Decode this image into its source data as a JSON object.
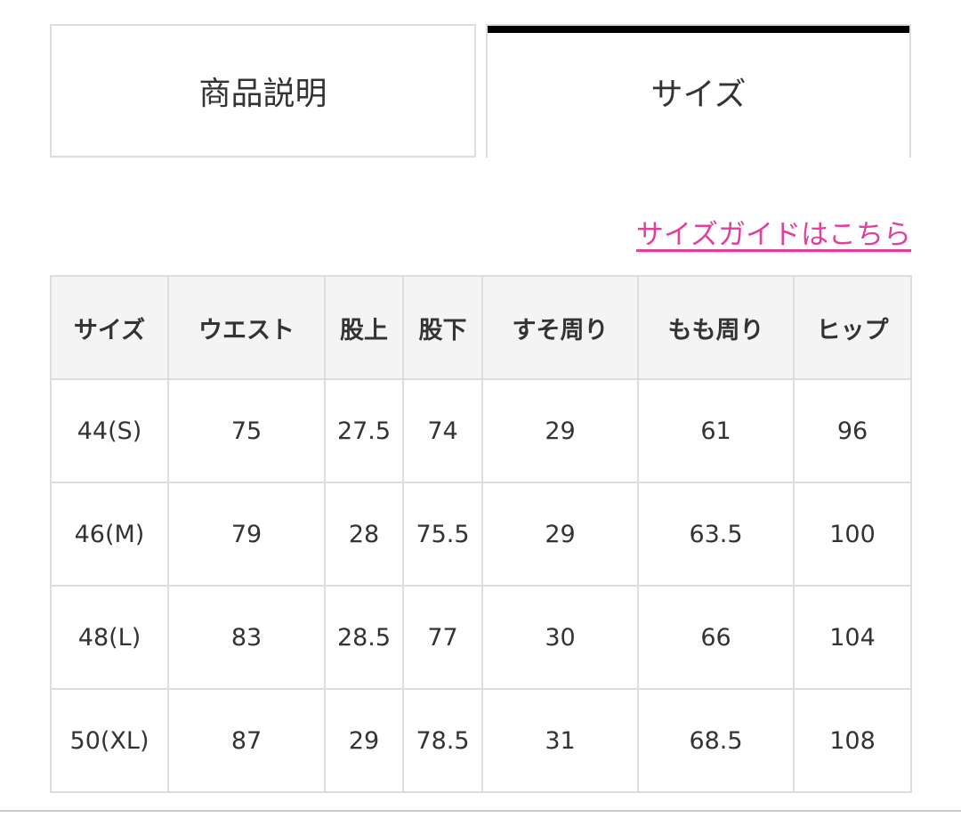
{
  "tabs": [
    {
      "label": "商品説明",
      "active": false
    },
    {
      "label": "サイズ",
      "active": true
    }
  ],
  "size_guide_link": "サイズガイドはこちら",
  "colors": {
    "link": "#e0409c",
    "active_tab_bar": "#000000",
    "header_bg": "#f4f4f4",
    "border": "#dddddd"
  },
  "table": {
    "headers": [
      "サイズ",
      "ウエスト",
      "股上",
      "股下",
      "すそ周り",
      "もも周り",
      "ヒップ"
    ],
    "rows": [
      [
        "44(S)",
        "75",
        "27.5",
        "74",
        "29",
        "61",
        "96"
      ],
      [
        "46(M)",
        "79",
        "28",
        "75.5",
        "29",
        "63.5",
        "100"
      ],
      [
        "48(L)",
        "83",
        "28.5",
        "77",
        "30",
        "66",
        "104"
      ],
      [
        "50(XL)",
        "87",
        "29",
        "78.5",
        "31",
        "68.5",
        "108"
      ]
    ]
  }
}
